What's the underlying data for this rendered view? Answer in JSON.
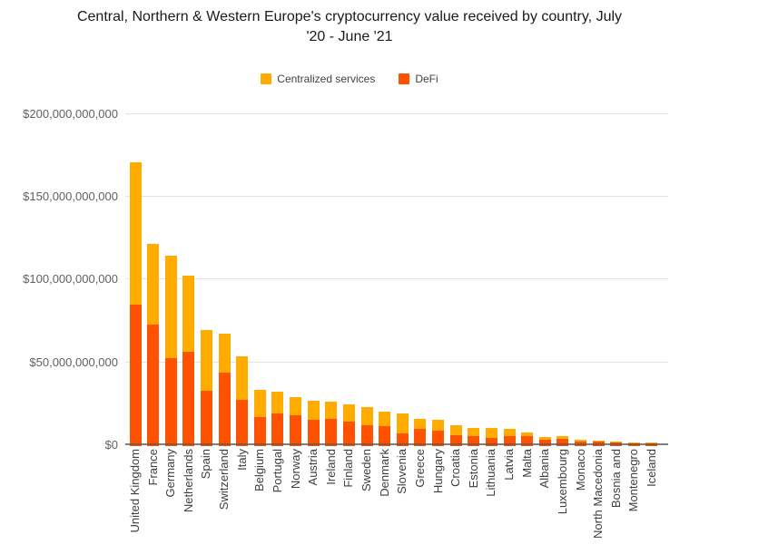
{
  "chart_data": {
    "type": "bar",
    "stacked": true,
    "title": "Central, Northern & Western Europe's cryptocurrency value received by country, July '20 - June '21",
    "title_lines": [
      "Central, Northern & Western Europe's cryptocurrency value received by country, July",
      "'20 - June '21"
    ],
    "xlabel": "",
    "ylabel": "",
    "value_unit": "USD billions",
    "ylim": [
      0,
      200
    ],
    "grid": true,
    "legend_position": "top",
    "y_ticks": [
      {
        "label": "$0",
        "value": 0
      },
      {
        "label": "$50,000,000,000",
        "value": 50
      },
      {
        "label": "$100,000,000,000",
        "value": 100
      },
      {
        "label": "$150,000,000,000",
        "value": 150
      },
      {
        "label": "$200,000,000,000",
        "value": 200
      }
    ],
    "categories": [
      "United Kingdom",
      "France",
      "Germany",
      "Netherlands",
      "Spain",
      "Switzerland",
      "Italy",
      "Belgium",
      "Portugal",
      "Norway",
      "Austria",
      "Ireland",
      "Finland",
      "Sweden",
      "Denmark",
      "Slovenia",
      "Greece",
      "Hungary",
      "Croatia",
      "Estonia",
      "Lithuania",
      "Latvia",
      "Malta",
      "Albania",
      "Luxembourg",
      "Monaco",
      "North Macedonia",
      "Bosnia and",
      "Montenegro",
      "Iceland"
    ],
    "series": [
      {
        "name": "Centralized services",
        "color": "#FFAB00",
        "values": [
          86,
          49,
          62,
          46,
          36.5,
          24,
          26,
          16.5,
          12.8,
          11.1,
          11.8,
          10.4,
          10.5,
          11.0,
          8.6,
          12.3,
          6.3,
          6.8,
          5.9,
          5.0,
          5.8,
          4.5,
          2.2,
          1.5,
          1.6,
          0.9,
          0.7,
          0.6,
          0.4,
          0.4
        ]
      },
      {
        "name": "DeFi",
        "color": "#FF5200",
        "values": [
          84,
          72,
          52,
          56,
          32.5,
          43,
          27,
          16.5,
          18.7,
          17.3,
          14.7,
          15.2,
          13.7,
          11.4,
          11.0,
          6.4,
          9.2,
          8.2,
          5.5,
          5.0,
          4.0,
          5.0,
          4.8,
          3.0,
          3.2,
          1.7,
          1.5,
          1.2,
          0.9,
          0.8
        ]
      }
    ]
  }
}
